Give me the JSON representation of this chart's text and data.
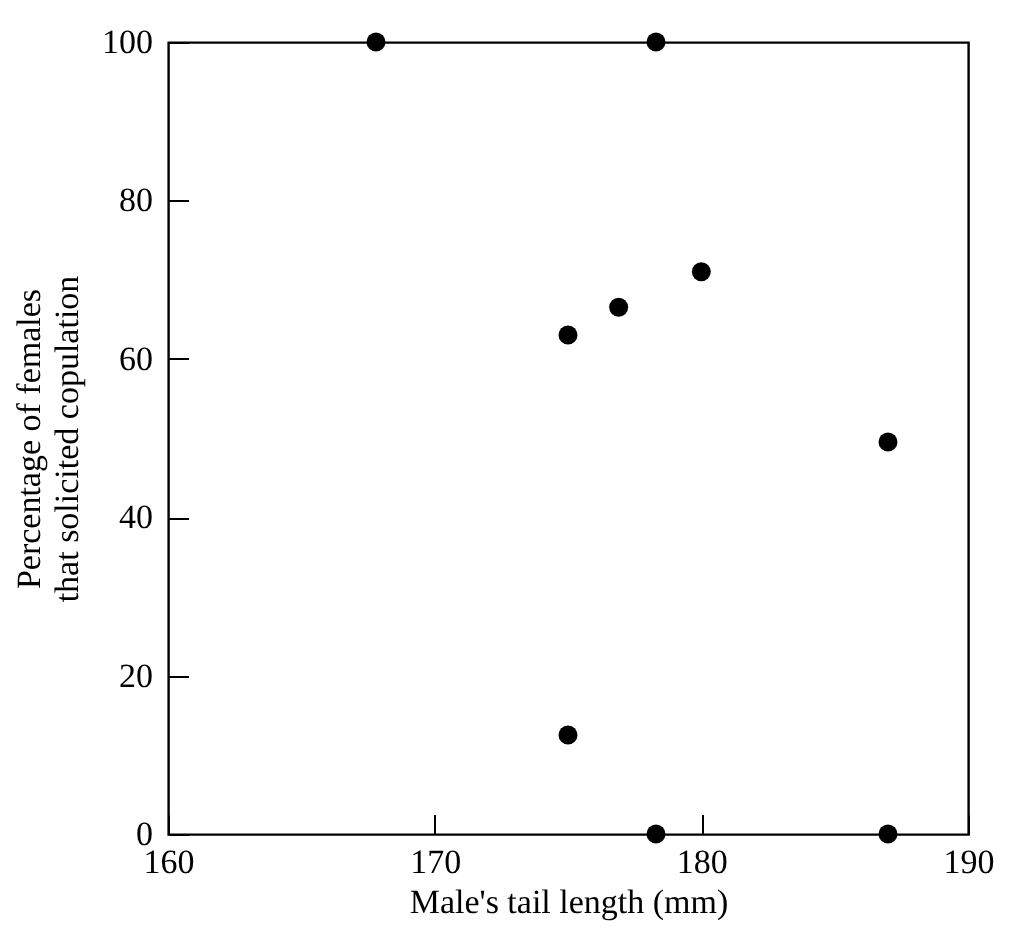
{
  "chart_data": {
    "type": "scatter",
    "xlabel": "Male's tail length (mm)",
    "ylabel": "Percentage of females\nthat solicited copulation",
    "x": [
      167.8,
      178.3,
      175,
      176.9,
      180,
      187,
      175,
      178.3,
      187
    ],
    "series": [
      {
        "color": "#000000",
        "values": [
          100,
          100,
          63,
          66.5,
          71,
          49.5,
          12.5,
          0,
          0
        ]
      }
    ],
    "xlim": [
      160,
      190
    ],
    "xticks": [
      160,
      170,
      180,
      190
    ],
    "ylim": [
      0,
      100
    ],
    "yticks": [
      0,
      20,
      40,
      60,
      80,
      100
    ],
    "grid": false,
    "marker": "circle"
  }
}
